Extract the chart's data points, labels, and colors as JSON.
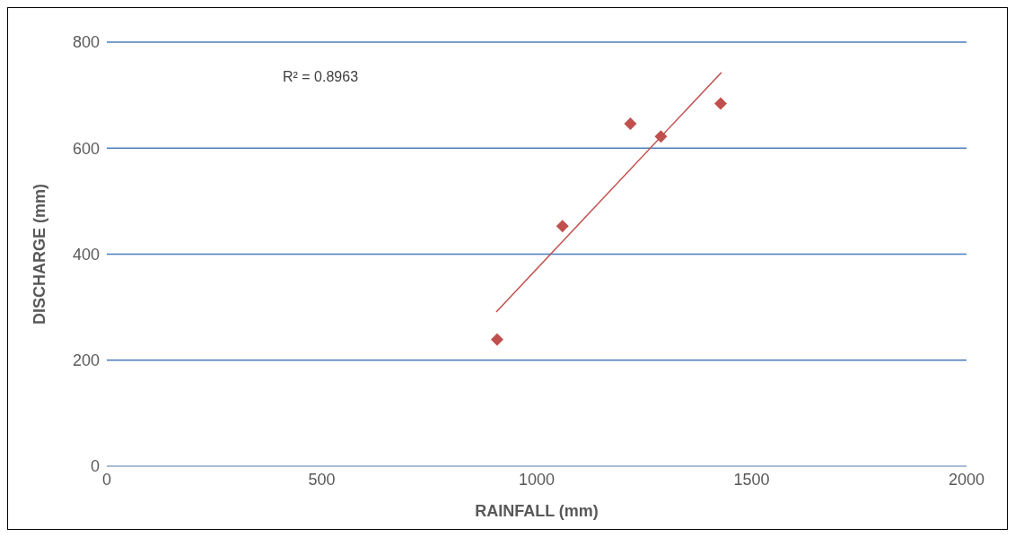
{
  "chart_data": {
    "type": "scatter",
    "xlabel": "RAINFALL (mm)",
    "ylabel": "DISCHARGE (mm)",
    "annotations": [
      "R² = 0.8963"
    ],
    "xlim": [
      0,
      2000
    ],
    "xticks": [
      0,
      500,
      1000,
      1500,
      2000
    ],
    "ylim": [
      0,
      800
    ],
    "yticks": [
      0,
      200,
      400,
      600,
      800
    ],
    "grid": "y",
    "marker": "diamond",
    "series": [
      {
        "color": "#c0504d",
        "x": [
          908,
          1060,
          1218,
          1289,
          1428
        ],
        "values": [
          239,
          453,
          646,
          622,
          684
        ]
      },
      {
        "type": "line",
        "color": "#c0504d",
        "line_style": "solid",
        "marker": "none",
        "x": [
          906,
          1430
        ],
        "values": [
          291,
          743
        ]
      }
    ]
  }
}
